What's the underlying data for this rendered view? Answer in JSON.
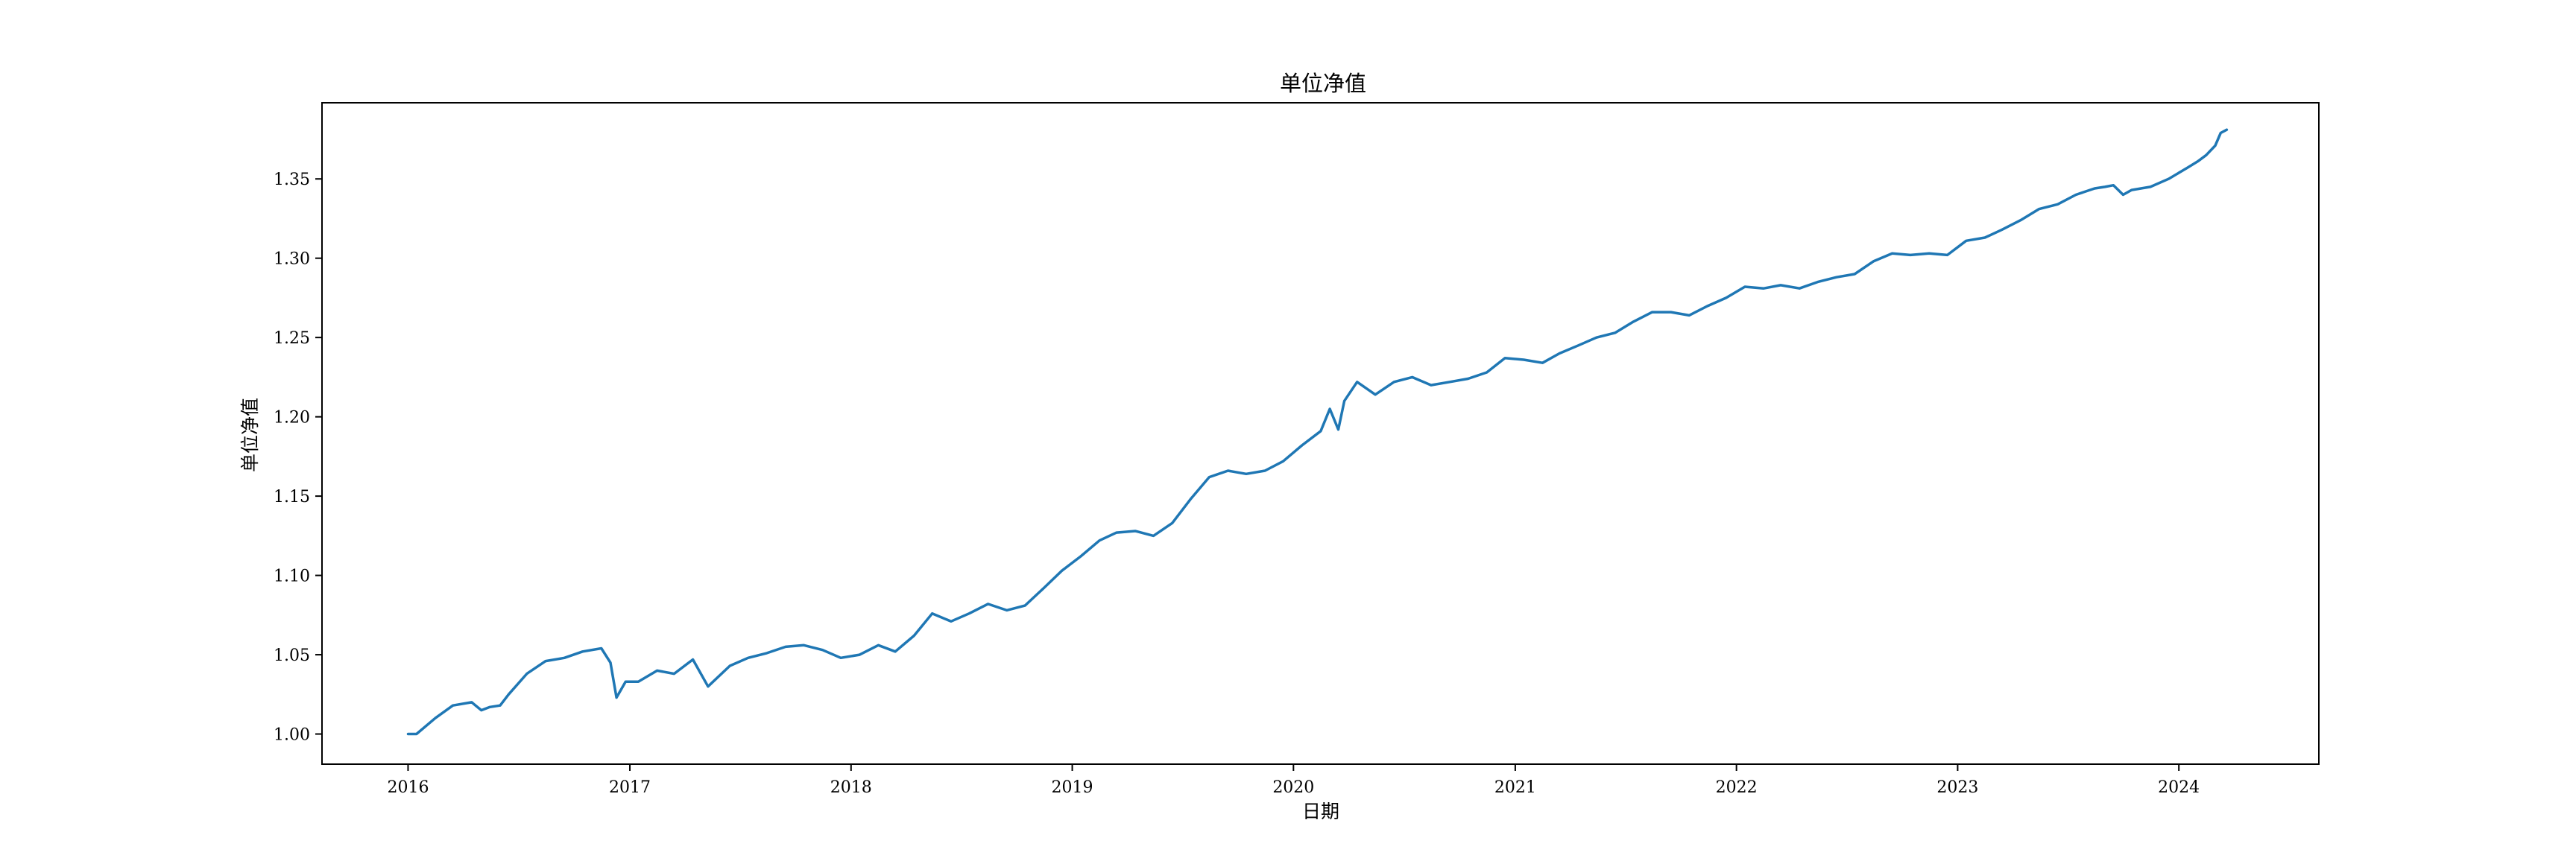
{
  "chart_data": {
    "type": "line",
    "title": "单位净值",
    "xlabel": "日期",
    "ylabel": "单位净值",
    "x_ticks": [
      "2016",
      "2017",
      "2018",
      "2019",
      "2020",
      "2021",
      "2022",
      "2023",
      "2024"
    ],
    "y_ticks": [
      "1.00",
      "1.05",
      "1.10",
      "1.15",
      "1.20",
      "1.25",
      "1.30",
      "1.35"
    ],
    "xlim": [
      "2015-08-12",
      "2024-08-19"
    ],
    "ylim": [
      0.981,
      1.398
    ],
    "grid": false,
    "legend": "none",
    "series": [
      {
        "color": "#1f77b4",
        "x": [
          "2016-01-01",
          "2016-01-15",
          "2016-02-15",
          "2016-03-15",
          "2016-04-15",
          "2016-05-01",
          "2016-05-15",
          "2016-06-01",
          "2016-06-15",
          "2016-07-15",
          "2016-08-15",
          "2016-09-15",
          "2016-10-15",
          "2016-11-15",
          "2016-11-30",
          "2016-12-10",
          "2016-12-25",
          "2017-01-15",
          "2017-02-15",
          "2017-03-15",
          "2017-04-15",
          "2017-05-10",
          "2017-06-15",
          "2017-07-15",
          "2017-08-15",
          "2017-09-15",
          "2017-10-15",
          "2017-11-15",
          "2017-12-15",
          "2018-01-15",
          "2018-02-15",
          "2018-03-15",
          "2018-04-15",
          "2018-05-15",
          "2018-06-15",
          "2018-07-15",
          "2018-08-15",
          "2018-09-15",
          "2018-10-15",
          "2018-11-15",
          "2018-12-15",
          "2019-01-15",
          "2019-02-15",
          "2019-03-15",
          "2019-04-15",
          "2019-05-15",
          "2019-06-15",
          "2019-07-15",
          "2019-08-15",
          "2019-09-15",
          "2019-10-15",
          "2019-11-15",
          "2019-12-15",
          "2020-01-15",
          "2020-02-15",
          "2020-03-01",
          "2020-03-15",
          "2020-03-25",
          "2020-04-15",
          "2020-05-15",
          "2020-06-15",
          "2020-07-15",
          "2020-08-15",
          "2020-09-15",
          "2020-10-15",
          "2020-11-15",
          "2020-12-15",
          "2021-01-15",
          "2021-02-15",
          "2021-03-15",
          "2021-04-15",
          "2021-05-15",
          "2021-06-15",
          "2021-07-15",
          "2021-08-15",
          "2021-09-15",
          "2021-10-15",
          "2021-11-15",
          "2021-12-15",
          "2022-01-15",
          "2022-02-15",
          "2022-03-15",
          "2022-04-15",
          "2022-05-15",
          "2022-06-15",
          "2022-07-15",
          "2022-08-15",
          "2022-09-15",
          "2022-10-15",
          "2022-11-15",
          "2022-12-15",
          "2023-01-15",
          "2023-02-15",
          "2023-03-15",
          "2023-04-15",
          "2023-05-15",
          "2023-06-15",
          "2023-07-15",
          "2023-08-15",
          "2023-09-01",
          "2023-09-15",
          "2023-10-01",
          "2023-10-15",
          "2023-11-15",
          "2023-12-15",
          "2024-01-15",
          "2024-02-01",
          "2024-02-15",
          "2024-03-01",
          "2024-03-10",
          "2024-03-20"
        ],
        "values": [
          1.0,
          1.0,
          1.01,
          1.018,
          1.02,
          1.015,
          1.017,
          1.018,
          1.025,
          1.038,
          1.046,
          1.048,
          1.052,
          1.054,
          1.045,
          1.023,
          1.033,
          1.033,
          1.04,
          1.038,
          1.047,
          1.03,
          1.043,
          1.048,
          1.051,
          1.055,
          1.056,
          1.053,
          1.048,
          1.05,
          1.056,
          1.052,
          1.062,
          1.076,
          1.071,
          1.076,
          1.082,
          1.078,
          1.081,
          1.092,
          1.103,
          1.112,
          1.122,
          1.127,
          1.128,
          1.125,
          1.133,
          1.148,
          1.162,
          1.166,
          1.164,
          1.166,
          1.172,
          1.182,
          1.191,
          1.205,
          1.192,
          1.21,
          1.222,
          1.214,
          1.222,
          1.225,
          1.22,
          1.222,
          1.224,
          1.228,
          1.237,
          1.236,
          1.234,
          1.24,
          1.245,
          1.25,
          1.253,
          1.26,
          1.266,
          1.266,
          1.264,
          1.27,
          1.275,
          1.282,
          1.281,
          1.283,
          1.281,
          1.285,
          1.288,
          1.29,
          1.298,
          1.303,
          1.302,
          1.303,
          1.302,
          1.311,
          1.313,
          1.318,
          1.324,
          1.331,
          1.334,
          1.34,
          1.344,
          1.345,
          1.346,
          1.34,
          1.343,
          1.345,
          1.35,
          1.357,
          1.361,
          1.365,
          1.371,
          1.379,
          1.381
        ]
      }
    ]
  }
}
